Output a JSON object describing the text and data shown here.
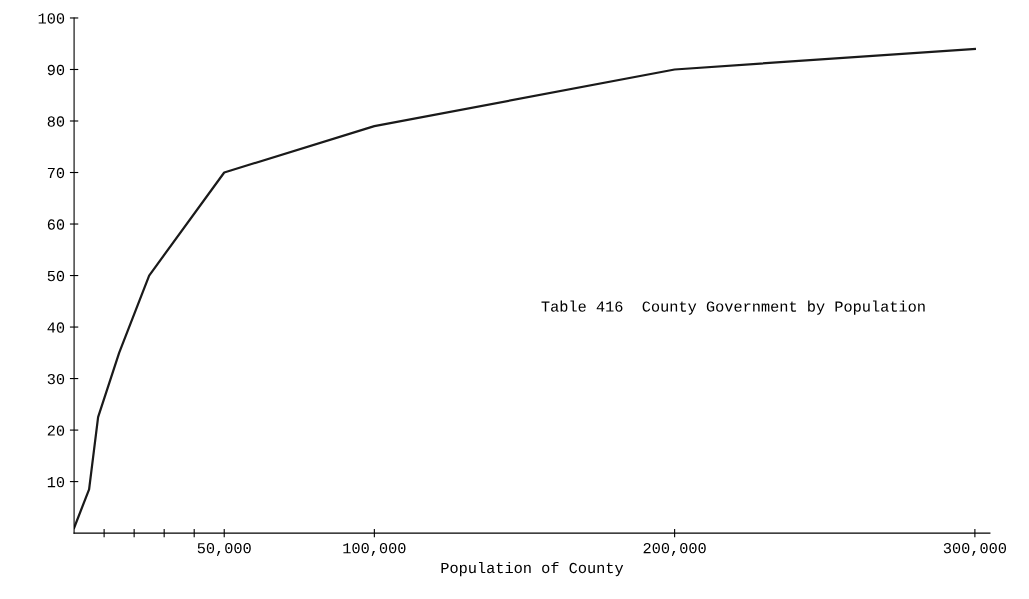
{
  "chart_data": {
    "type": "line",
    "xlabel": "Population of County",
    "annotations": [
      "Table 416  County Government by Population"
    ],
    "x": [
      0,
      5000,
      8000,
      15000,
      25000,
      50000,
      100000,
      200000,
      300000
    ],
    "series": [
      {
        "color": "#1a1a1a",
        "values": [
          1,
          8.5,
          22.5,
          35,
          50,
          70,
          79,
          90,
          94
        ]
      }
    ],
    "xlim": [
      0,
      305000
    ],
    "ylim": [
      0,
      100
    ],
    "xticks": [
      {
        "value": 10000,
        "label": null
      },
      {
        "value": 20000,
        "label": null
      },
      {
        "value": 30000,
        "label": null
      },
      {
        "value": 40000,
        "label": null
      },
      {
        "value": 50000,
        "label": "50,000"
      },
      {
        "value": 100000,
        "label": "100,000"
      },
      {
        "value": 200000,
        "label": "200,000"
      },
      {
        "value": 300000,
        "label": "300,000"
      }
    ],
    "yticks": [
      10,
      20,
      30,
      40,
      50,
      60,
      70,
      80,
      90,
      100
    ],
    "grid": false,
    "legend": false,
    "marker": "none",
    "line_style": "solid"
  }
}
